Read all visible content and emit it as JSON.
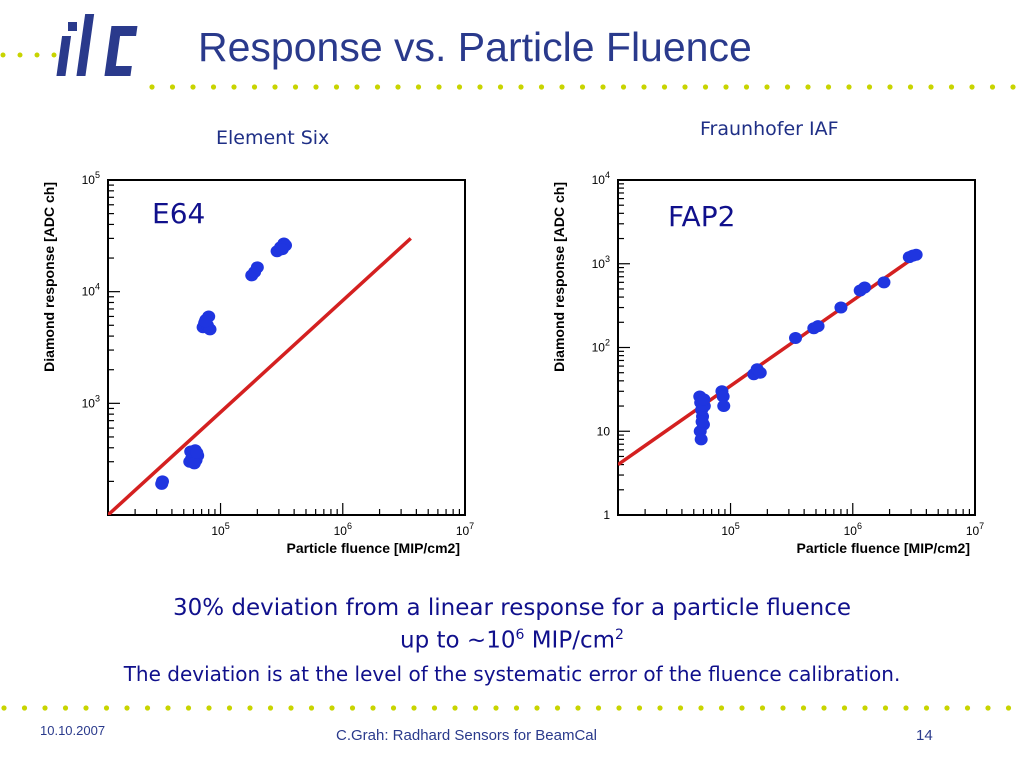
{
  "header": {
    "logo_text": "ilc",
    "title": "Response vs. Particle Fluence"
  },
  "panels": [
    {
      "source_label": "Element Six",
      "sample_label": "E64"
    },
    {
      "source_label": "Fraunhofer IAF",
      "sample_label": "FAP2"
    }
  ],
  "caption": {
    "line1": "30% deviation from a linear response for a particle fluence",
    "line2_prefix": "up to ~10",
    "line2_exp": "6",
    "line2_unit": " MIP/cm",
    "line2_unit_exp": "2",
    "line3": "The deviation is at the level of the systematic error of the fluence calibration."
  },
  "footer": {
    "date": "10.10.2007",
    "center": "C.Grah: Radhard Sensors for BeamCal",
    "page": "14"
  },
  "colors": {
    "accent": "#2a3a8c",
    "points": "#1f35e0",
    "fit": "#d42020",
    "dots": "#c8d400"
  },
  "chart_data": [
    {
      "type": "scatter",
      "title": "E64",
      "xlabel": "Particle fluence [MIP/cm2]",
      "ylabel": "Diamond response [ADC ch]",
      "xscale": "log",
      "yscale": "log",
      "xlim": [
        12000,
        10000000
      ],
      "ylim": [
        100,
        100000
      ],
      "x_ticks": [
        {
          "v": 100000,
          "label": "10^5"
        },
        {
          "v": 1000000,
          "label": "10^6"
        },
        {
          "v": 10000000,
          "label": "10^7"
        }
      ],
      "y_ticks": [
        {
          "v": 1000,
          "label": "10^3"
        },
        {
          "v": 10000,
          "label": "10^4"
        },
        {
          "v": 100000,
          "label": "10^5"
        }
      ],
      "fit_line": [
        [
          12000,
          100
        ],
        [
          3600000,
          30000
        ]
      ],
      "series": [
        {
          "points": [
            [
              33000,
              190
            ],
            [
              33500,
              200
            ],
            [
              56000,
              300
            ],
            [
              58000,
              320
            ],
            [
              60000,
              350
            ],
            [
              62000,
              380
            ],
            [
              63000,
              310
            ],
            [
              65000,
              340
            ],
            [
              57000,
              370
            ],
            [
              61000,
              290
            ],
            [
              64000,
              360
            ],
            [
              72000,
              4800
            ],
            [
              74000,
              5200
            ],
            [
              76000,
              5600
            ],
            [
              78000,
              5000
            ],
            [
              80000,
              6000
            ],
            [
              82000,
              4600
            ],
            [
              75000,
              5400
            ],
            [
              180000,
              14000
            ],
            [
              190000,
              15000
            ],
            [
              200000,
              16500
            ],
            [
              290000,
              23000
            ],
            [
              310000,
              25000
            ],
            [
              330000,
              27000
            ],
            [
              340000,
              26000
            ],
            [
              320000,
              24000
            ]
          ]
        }
      ]
    },
    {
      "type": "scatter",
      "title": "FAP2",
      "xlabel": "Particle fluence [MIP/cm2]",
      "ylabel": "Diamond response [ADC ch]",
      "xscale": "log",
      "yscale": "log",
      "xlim": [
        12000,
        10000000
      ],
      "ylim": [
        1,
        10000
      ],
      "x_ticks": [
        {
          "v": 100000,
          "label": "10^5"
        },
        {
          "v": 1000000,
          "label": "10^6"
        },
        {
          "v": 10000000,
          "label": "10^7"
        }
      ],
      "y_ticks": [
        {
          "v": 1,
          "label": "1"
        },
        {
          "v": 10,
          "label": "10"
        },
        {
          "v": 100,
          "label": "10^2"
        },
        {
          "v": 1000,
          "label": "10^3"
        },
        {
          "v": 10000,
          "label": "10^4"
        }
      ],
      "fit_line": [
        [
          12000,
          4
        ],
        [
          3600000,
          1350
        ]
      ],
      "series": [
        {
          "points": [
            [
              56000,
              26
            ],
            [
              57000,
              22
            ],
            [
              58000,
              18
            ],
            [
              59000,
              15
            ],
            [
              60000,
              12
            ],
            [
              56500,
              10
            ],
            [
              57500,
              8
            ],
            [
              61000,
              20
            ],
            [
              60500,
              24
            ],
            [
              58500,
              13
            ],
            [
              85000,
              30
            ],
            [
              87000,
              26
            ],
            [
              88000,
              20
            ],
            [
              155000,
              48
            ],
            [
              165000,
              55
            ],
            [
              175000,
              50
            ],
            [
              340000,
              130
            ],
            [
              480000,
              170
            ],
            [
              520000,
              180
            ],
            [
              800000,
              300
            ],
            [
              1150000,
              480
            ],
            [
              1250000,
              520
            ],
            [
              1800000,
              600
            ],
            [
              2900000,
              1200
            ],
            [
              3100000,
              1250
            ],
            [
              3300000,
              1280
            ]
          ]
        }
      ]
    }
  ]
}
